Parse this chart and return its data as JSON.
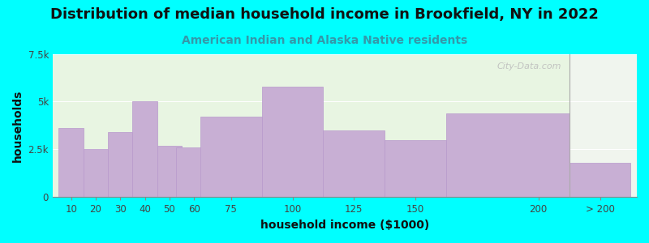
{
  "title": "Distribution of median household income in Brookfield, NY in 2022",
  "subtitle": "American Indian and Alaska Native residents",
  "xlabel": "household income ($1000)",
  "ylabel": "households",
  "background_color": "#00FFFF",
  "plot_bg_left": "#e8f5e2",
  "plot_bg_right": "#f0f5ee",
  "bar_color": "#c8afd4",
  "bar_edge_color": "#b899cc",
  "categories": [
    "10",
    "20",
    "30",
    "40",
    "50",
    "60",
    "75",
    "100",
    "125",
    "150",
    "200",
    "> 200"
  ],
  "values": [
    3600,
    2500,
    3400,
    5000,
    2700,
    2600,
    4200,
    5800,
    3500,
    3000,
    4400,
    1800
  ],
  "bar_widths": [
    1,
    1,
    1,
    1,
    1,
    1,
    1.5,
    2.5,
    2.5,
    2.5,
    5,
    5
  ],
  "bar_centers": [
    10,
    20,
    30,
    40,
    50,
    60,
    75,
    100,
    125,
    150,
    187.5,
    225
  ],
  "xlim": [
    2.5,
    240
  ],
  "divider_x": 212.5,
  "ylim": [
    0,
    7500
  ],
  "yticks": [
    0,
    2500,
    5000,
    7500
  ],
  "ytick_labels": [
    "0",
    "2.5k",
    "5k",
    "7.5k"
  ],
  "xtick_positions": [
    10,
    20,
    30,
    40,
    50,
    60,
    75,
    100,
    125,
    150,
    200,
    225
  ],
  "xtick_labels": [
    "10",
    "20",
    "30",
    "40",
    "50",
    "60",
    "75",
    "100",
    "125",
    "150",
    "200",
    "> 200"
  ],
  "title_fontsize": 13,
  "subtitle_fontsize": 10,
  "axis_label_fontsize": 10,
  "tick_fontsize": 8.5,
  "watermark_text": "City-Data.com",
  "subtitle_color": "#3399aa"
}
